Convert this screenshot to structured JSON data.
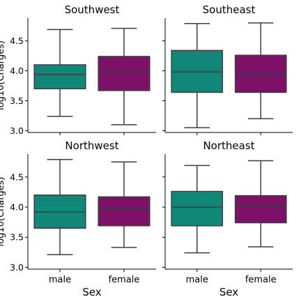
{
  "chart_data": [
    {
      "type": "box",
      "title": "Southwest",
      "categories": [
        "male",
        "female"
      ],
      "xlabel": "",
      "ylabel": "log10(Charges)",
      "ylim": [
        2.97,
        4.88
      ],
      "yticks": [
        "3.0",
        "3.5",
        "4.0",
        "4.5"
      ],
      "show_xticklabels": false,
      "show_yticklabels": true,
      "boxes": [
        {
          "category": "male",
          "min": 3.24,
          "q1": 3.7,
          "median": 3.94,
          "q3": 4.1,
          "max": 4.69
        },
        {
          "category": "female",
          "min": 3.1,
          "q1": 3.67,
          "median": 3.97,
          "q3": 4.24,
          "max": 4.71
        }
      ]
    },
    {
      "type": "box",
      "title": "Southeast",
      "categories": [
        "male",
        "female"
      ],
      "xlabel": "",
      "ylabel": "",
      "ylim": [
        2.97,
        4.88
      ],
      "yticks": [
        "3.0",
        "3.5",
        "4.0",
        "4.5"
      ],
      "show_xticklabels": false,
      "show_yticklabels": false,
      "boxes": [
        {
          "category": "male",
          "min": 3.05,
          "q1": 3.64,
          "median": 3.98,
          "q3": 4.34,
          "max": 4.79
        },
        {
          "category": "female",
          "min": 3.2,
          "q1": 3.64,
          "median": 3.94,
          "q3": 4.26,
          "max": 4.8
        }
      ]
    },
    {
      "type": "box",
      "title": "Northwest",
      "categories": [
        "male",
        "female"
      ],
      "xlabel": "Sex",
      "ylabel": "log10(Charges)",
      "ylim": [
        2.97,
        4.88
      ],
      "yticks": [
        "3.0",
        "3.5",
        "4.0",
        "4.5"
      ],
      "show_xticklabels": true,
      "show_yticklabels": true,
      "boxes": [
        {
          "category": "male",
          "min": 3.21,
          "q1": 3.65,
          "median": 3.92,
          "q3": 4.2,
          "max": 4.79
        },
        {
          "category": "female",
          "min": 3.33,
          "q1": 3.69,
          "median": 3.98,
          "q3": 4.17,
          "max": 4.75
        }
      ]
    },
    {
      "type": "box",
      "title": "Northeast",
      "categories": [
        "male",
        "female"
      ],
      "xlabel": "Sex",
      "ylabel": "",
      "ylim": [
        2.97,
        4.88
      ],
      "yticks": [
        "3.0",
        "3.5",
        "4.0",
        "4.5"
      ],
      "show_xticklabels": true,
      "show_yticklabels": false,
      "boxes": [
        {
          "category": "male",
          "min": 3.24,
          "q1": 3.69,
          "median": 4.0,
          "q3": 4.26,
          "max": 4.69
        },
        {
          "category": "female",
          "min": 3.34,
          "q1": 3.74,
          "median": 4.01,
          "q3": 4.19,
          "max": 4.77
        }
      ]
    }
  ],
  "colors": {
    "male": "#11877a",
    "female": "#7e1068",
    "edge": "#3d3d3d",
    "axis": "#000000"
  }
}
